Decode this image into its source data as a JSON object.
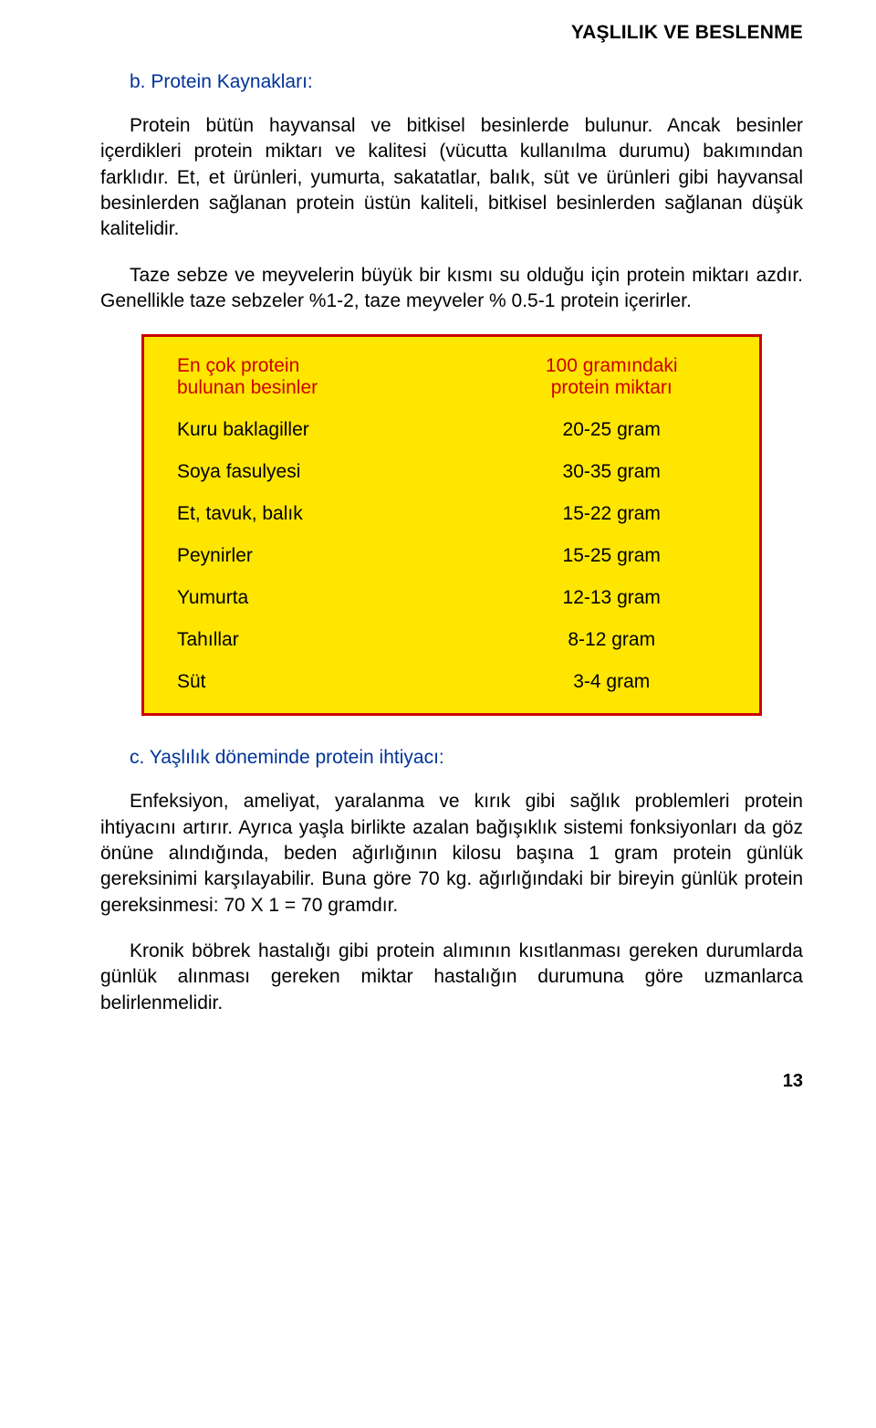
{
  "header": {
    "title": "YAŞLILIK VE BESLENME"
  },
  "section_b": {
    "heading": "b. Protein Kaynakları:",
    "p1": "Protein bütün hayvansal ve bitkisel besinlerde bulunur. Ancak besinler içerdikleri protein miktarı ve kalitesi (vücutta kullanılma durumu) bakımından farklıdır. Et, et ürünleri, yumurta, sakatatlar, balık, süt ve ürünleri gibi hayvansal besinlerden sağlanan protein üstün kaliteli, bitkisel besinlerden sağlanan düşük kalitelidir.",
    "p2": "Taze sebze ve meyvelerin büyük bir kısmı su olduğu için protein miktarı azdır. Genellikle taze sebzeler %1-2, taze meyveler % 0.5-1 protein içerirler."
  },
  "protein_table": {
    "type": "table",
    "background_color": "#ffe600",
    "border_color": "#cc0000",
    "header_text_color": "#cc0000",
    "body_text_color": "#000000",
    "header": {
      "left_line1": "En çok protein",
      "left_line2": "bulunan besinler",
      "right_line1": "100 gramındaki",
      "right_line2": "protein miktarı"
    },
    "rows": [
      {
        "label": "Kuru baklagiller",
        "value": "20-25 gram"
      },
      {
        "label": "Soya fasulyesi",
        "value": "30-35 gram"
      },
      {
        "label": "Et, tavuk, balık",
        "value": "15-22 gram"
      },
      {
        "label": "Peynirler",
        "value": "15-25 gram"
      },
      {
        "label": "Yumurta",
        "value": "12-13 gram"
      },
      {
        "label": "Tahıllar",
        "value": "8-12 gram"
      },
      {
        "label": "Süt",
        "value": "3-4 gram"
      }
    ]
  },
  "section_c": {
    "heading": "c. Yaşlılık döneminde protein ihtiyacı:",
    "p1": "Enfeksiyon, ameliyat, yaralanma ve kırık gibi sağlık problemleri protein ihtiyacını artırır. Ayrıca yaşla birlikte azalan bağışıklık sistemi fonksiyonları da göz önüne alındığında, beden ağırlığının kilosu başına 1 gram protein günlük gereksinimi karşılayabilir. Buna göre 70 kg. ağırlığındaki bir bireyin günlük protein gereksinmesi: 70 X 1 = 70 gramdır.",
    "p2": "Kronik böbrek hastalığı gibi protein alımının kısıtlanması gereken durumlarda günlük alınması gereken miktar hastalığın durumuna göre uzmanlarca belirlenmelidir."
  },
  "page_number": "13"
}
